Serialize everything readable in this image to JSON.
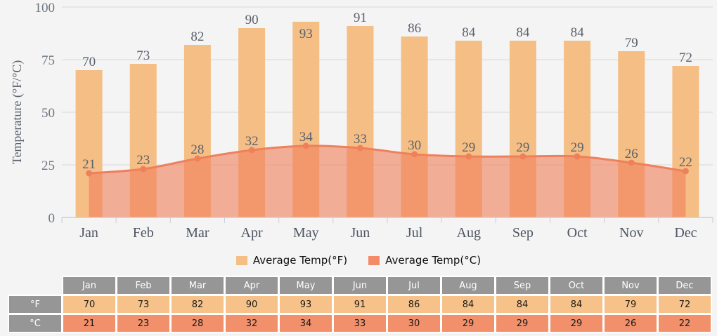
{
  "chart_data": {
    "type": "bar",
    "title": "",
    "categories": [
      "Jan",
      "Feb",
      "Mar",
      "Apr",
      "May",
      "Jun",
      "Jul",
      "Aug",
      "Sep",
      "Oct",
      "Nov",
      "Dec"
    ],
    "series": [
      {
        "name": "Average Temp(°F)",
        "type": "bar",
        "color": "#f5be85",
        "legend_color": "#f5be85",
        "values": [
          70,
          73,
          82,
          90,
          93,
          91,
          86,
          84,
          84,
          84,
          79,
          72
        ]
      },
      {
        "name": "Average Temp(°C)",
        "type": "area",
        "color": "#ef805c",
        "fill": "rgba(240,129,94,0.62)",
        "legend_color": "#f28b66",
        "values": [
          21,
          23,
          28,
          32,
          34,
          33,
          30,
          29,
          29,
          29,
          26,
          22
        ]
      }
    ],
    "xlabel": "",
    "ylabel": "Temperature (°F/°C)",
    "ylim": [
      0,
      100
    ],
    "yticks": [
      0,
      25,
      50,
      75,
      100
    ],
    "grid": true,
    "legend_position": "bottom"
  },
  "colors": {
    "background": "#f4f4f4",
    "gridline": "#d9d9d9",
    "axis_line": "#c6cfda",
    "value_label": "#5a616c",
    "month_label": "#4e5661",
    "ytick_label": "#6e7681",
    "table_header": "#969696",
    "table_f_cell": "#f6c289",
    "table_c_cell": "#f1906b"
  },
  "table": {
    "row_labels": [
      "°F",
      "°C"
    ]
  }
}
